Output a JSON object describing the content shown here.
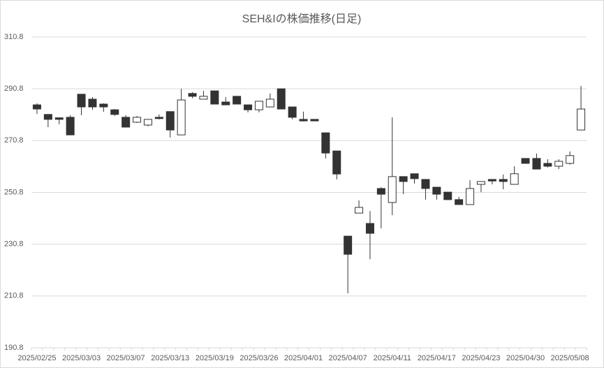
{
  "chart_data": {
    "type": "candlestick",
    "title": "SEH&Iの株価推移(日足)",
    "categories": [
      "2025/02/25",
      null,
      null,
      null,
      "2025/03/03",
      null,
      null,
      null,
      "2025/03/07",
      null,
      null,
      null,
      "2025/03/13",
      null,
      null,
      null,
      "2025/03/19",
      null,
      null,
      null,
      "2025/03/26",
      null,
      null,
      null,
      "2025/04/01",
      null,
      null,
      null,
      "2025/04/07",
      null,
      null,
      null,
      "2025/04/11",
      null,
      null,
      null,
      "2025/04/17",
      null,
      null,
      null,
      "2025/04/23",
      null,
      null,
      null,
      "2025/04/30",
      null,
      null,
      null,
      "2025/05/08",
      null
    ],
    "open": [
      284.6,
      280.9,
      279.6,
      279.8,
      288.7,
      286.8,
      284.9,
      282.7,
      279.8,
      277.9,
      276.8,
      279.8,
      282.0,
      273.0,
      289.0,
      286.8,
      290.0,
      285.7,
      287.9,
      284.6,
      282.7,
      283.8,
      290.8,
      283.8,
      279.0,
      279.0,
      273.8,
      266.8,
      233.9,
      242.8,
      238.8,
      252.3,
      246.9,
      256.9,
      258.0,
      255.8,
      252.8,
      250.9,
      248.0,
      246.1,
      253.9,
      255.8,
      255.8,
      253.9,
      263.9,
      263.9,
      262.0,
      260.9,
      262.0,
      274.9
    ],
    "high": [
      285.2,
      281.0,
      279.8,
      280.6,
      288.7,
      287.6,
      285.2,
      283.0,
      280.6,
      280.3,
      279.0,
      280.9,
      282.0,
      290.8,
      289.5,
      290.0,
      290.0,
      287.6,
      287.9,
      284.6,
      286.0,
      289.0,
      290.8,
      283.8,
      282.0,
      279.0,
      273.8,
      266.8,
      233.9,
      247.7,
      243.6,
      252.8,
      279.8,
      256.9,
      258.0,
      255.8,
      252.8,
      250.9,
      249.1,
      255.5,
      255.0,
      255.8,
      257.7,
      260.9,
      263.9,
      265.8,
      263.6,
      263.6,
      266.6,
      291.9
    ],
    "low": [
      281.1,
      276.0,
      277.1,
      273.0,
      280.6,
      282.7,
      281.9,
      280.3,
      276.0,
      277.6,
      276.3,
      279.0,
      272.0,
      273.0,
      287.1,
      286.8,
      284.9,
      284.6,
      284.9,
      281.7,
      281.7,
      283.8,
      283.0,
      279.0,
      278.2,
      278.4,
      263.9,
      255.8,
      211.8,
      242.8,
      225.0,
      236.9,
      242.0,
      250.1,
      254.2,
      248.0,
      248.0,
      248.0,
      246.1,
      246.1,
      250.9,
      253.9,
      252.0,
      253.9,
      262.0,
      259.8,
      260.4,
      259.8,
      261.5,
      274.9
    ],
    "close": [
      283.0,
      279.0,
      279.0,
      273.0,
      283.8,
      283.8,
      283.8,
      280.9,
      276.0,
      279.8,
      279.0,
      279.3,
      274.9,
      286.5,
      287.9,
      287.9,
      284.9,
      284.6,
      284.9,
      282.7,
      286.0,
      286.8,
      283.0,
      279.8,
      278.4,
      278.4,
      266.0,
      257.9,
      226.9,
      245.0,
      235.0,
      250.1,
      256.9,
      255.0,
      256.1,
      252.3,
      250.1,
      248.0,
      246.1,
      252.3,
      255.0,
      255.2,
      255.0,
      258.0,
      262.0,
      259.8,
      260.9,
      262.8,
      265.0,
      283.0
    ],
    "up_color": "#ffffff",
    "down_color": "#333333",
    "line_color": "#333333",
    "ylim": [
      190.8,
      310.8
    ],
    "yticks": [
      190.8,
      210.8,
      230.8,
      250.8,
      270.8,
      290.8,
      310.8
    ],
    "grid": true
  }
}
